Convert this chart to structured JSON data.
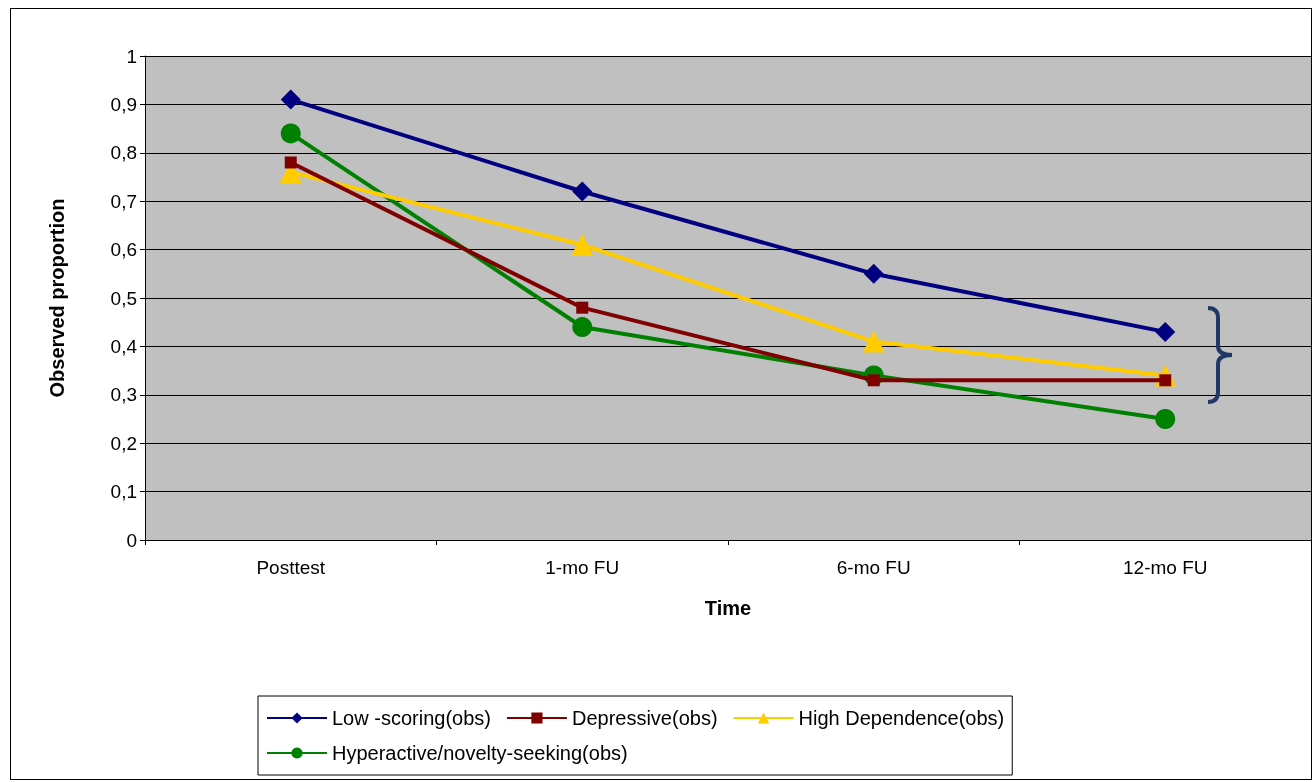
{
  "chart_data": {
    "type": "line",
    "xlabel": "Time",
    "ylabel": "Observed proportion",
    "categories": [
      "Posttest",
      "1-mo FU",
      "6-mo FU",
      "12-mo FU"
    ],
    "series": [
      {
        "name": "Low -scoring(obs)",
        "color": "#000080",
        "marker": "diamond",
        "values": [
          0.91,
          0.72,
          0.55,
          0.43
        ]
      },
      {
        "name": "Depressive(obs)",
        "color": "#800000",
        "marker": "square",
        "values": [
          0.78,
          0.48,
          0.33,
          0.33
        ]
      },
      {
        "name": "High Dependence(obs)",
        "color": "#ffcc00",
        "marker": "triangle",
        "values": [
          0.76,
          0.61,
          0.41,
          0.34
        ]
      },
      {
        "name": "Hyperactive/novelty-seeking(obs)",
        "color": "#008000",
        "marker": "circle",
        "values": [
          0.84,
          0.44,
          0.34,
          0.25
        ]
      }
    ],
    "ylim": [
      0,
      1
    ],
    "yticks": [
      0,
      {
        "value": 0.1,
        "label": "0,1"
      },
      {
        "value": 0.2,
        "label": "0,2"
      },
      {
        "value": 0.3,
        "label": "0,3"
      },
      {
        "value": 0.4,
        "label": "0,4"
      },
      {
        "value": 0.5,
        "label": "0,5"
      },
      {
        "value": 0.6,
        "label": "0,6"
      },
      {
        "value": 0.7,
        "label": "0,7"
      },
      {
        "value": 0.8,
        "label": "0,8"
      },
      {
        "value": 0.9,
        "label": "0,9"
      },
      1
    ],
    "grid": "y",
    "legend": "bottom"
  }
}
